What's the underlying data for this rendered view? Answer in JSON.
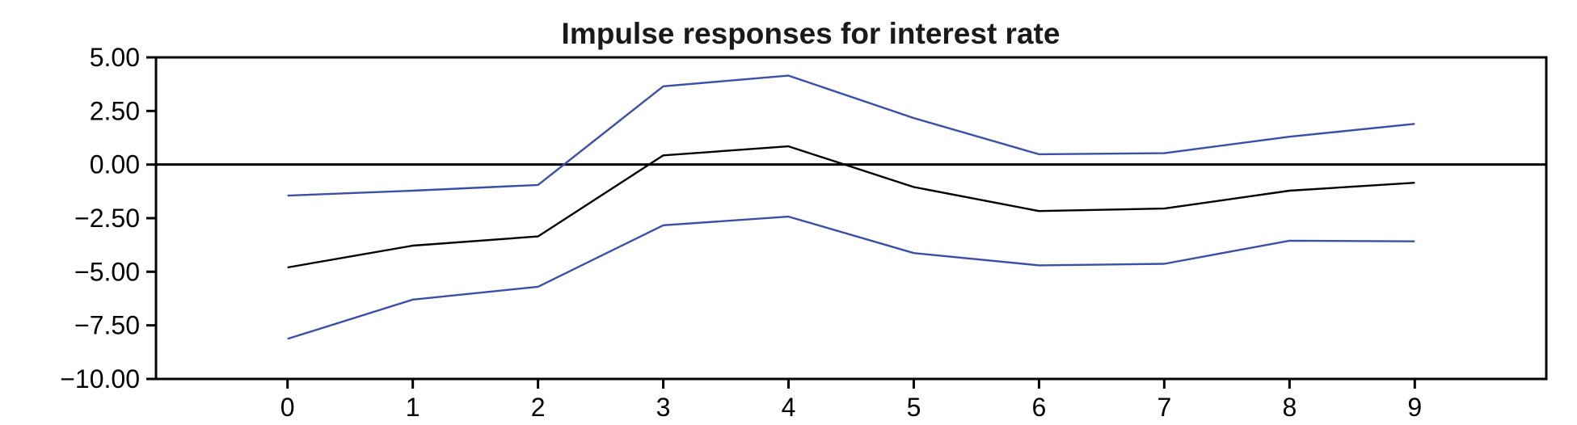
{
  "chart_data": {
    "type": "line",
    "title": "Impulse responses for interest rate",
    "xlabel": "",
    "ylabel": "",
    "x": [
      0,
      1,
      2,
      3,
      4,
      5,
      6,
      7,
      8,
      9
    ],
    "xlim": [
      -1.05,
      10.05
    ],
    "ylim": [
      -10,
      5
    ],
    "x_ticks": [
      "0",
      "1",
      "2",
      "3",
      "4",
      "5",
      "6",
      "7",
      "8",
      "9"
    ],
    "y_ticks": [
      5,
      2.5,
      0,
      -2.5,
      -5,
      -7.5,
      -10
    ],
    "y_tick_labels": [
      "5.00",
      "2.50",
      "0.00",
      "−2.50",
      "−5.00",
      "−7.50",
      "−10.00"
    ],
    "grid": false,
    "zero_line": 0,
    "series": [
      {
        "role": "upper-band",
        "color": "#3a4fa6",
        "values": [
          -1.45,
          -1.22,
          -0.95,
          3.65,
          4.15,
          2.17,
          0.48,
          0.53,
          1.3,
          1.9
        ]
      },
      {
        "role": "response",
        "color": "#000000",
        "values": [
          -4.8,
          -3.78,
          -3.35,
          0.43,
          0.85,
          -1.05,
          -2.17,
          -2.05,
          -1.22,
          -0.85
        ]
      },
      {
        "role": "lower-band",
        "color": "#3a4fa6",
        "values": [
          -8.13,
          -6.3,
          -5.7,
          -2.83,
          -2.43,
          -4.13,
          -4.7,
          -4.63,
          -3.55,
          -3.58
        ]
      }
    ]
  }
}
